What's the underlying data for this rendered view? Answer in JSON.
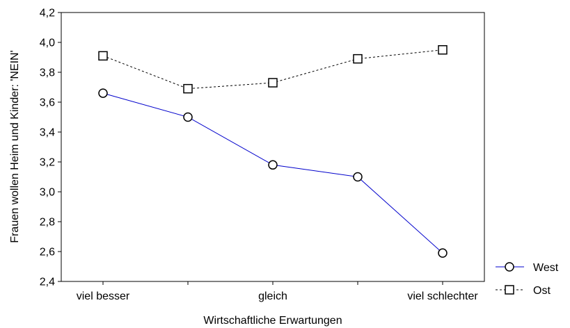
{
  "chart_data": {
    "type": "line",
    "title": "",
    "xlabel": "Wirtschaftliche Erwartungen",
    "ylabel": "Frauen wollen Heim und Kinder: 'NEIN'",
    "categories": [
      "viel besser",
      "",
      "gleich",
      "",
      "viel schlechter"
    ],
    "ylim": [
      2.4,
      4.2
    ],
    "yticks": [
      "2,4",
      "2,6",
      "2,8",
      "3,0",
      "3,2",
      "3,4",
      "3,6",
      "3,8",
      "4,0",
      "4,2"
    ],
    "grid": false,
    "legend_position": "bottom-right",
    "series": [
      {
        "name": "West",
        "values": [
          3.66,
          3.5,
          3.18,
          3.1,
          2.59
        ],
        "color": "#0000cc",
        "marker": "circle",
        "line_style": "solid"
      },
      {
        "name": "Ost",
        "values": [
          3.91,
          3.69,
          3.73,
          3.89,
          3.95
        ],
        "color": "#000000",
        "marker": "square",
        "line_style": "dashed"
      }
    ]
  }
}
